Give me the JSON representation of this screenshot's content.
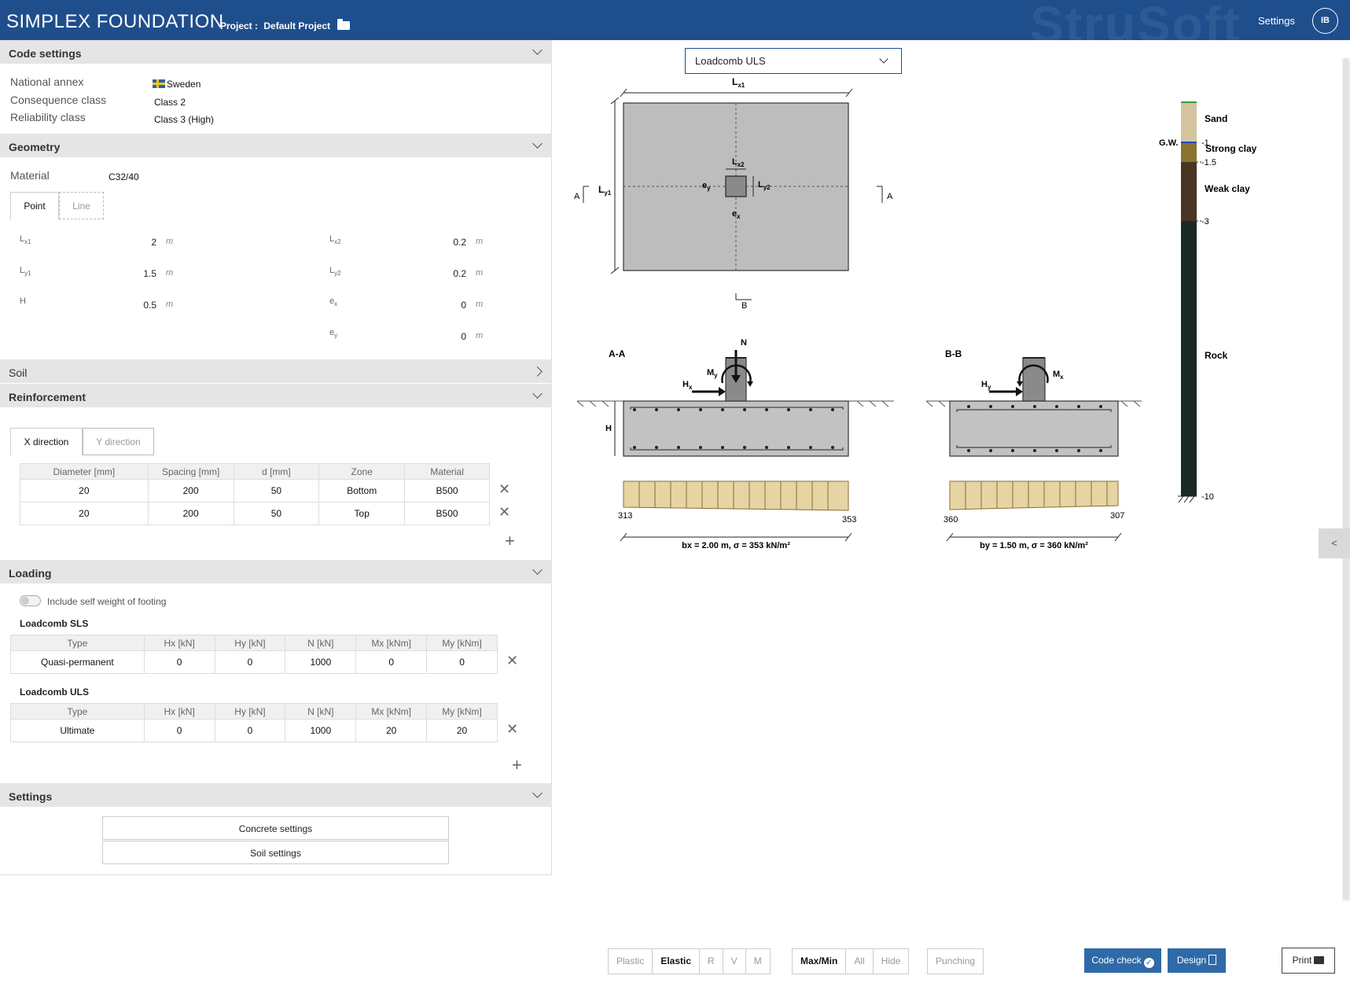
{
  "header": {
    "brand": "SIMPLEX FOUNDATION",
    "project_label": "Project :",
    "project_name": "Default Project",
    "watermark": "StruSoft",
    "settings": "Settings",
    "user_initials": "IB"
  },
  "code_settings": {
    "title": "Code settings",
    "national_annex_label": "National annex",
    "national_annex_value": "Sweden",
    "consequence_class_label": "Consequence class",
    "consequence_class_value": "Class 2",
    "reliability_class_label": "Reliability class",
    "reliability_class_value": "Class 3 (High)"
  },
  "geometry": {
    "title": "Geometry",
    "material_label": "Material",
    "material_value": "C32/40",
    "tabs": [
      "Point",
      "Line"
    ],
    "fields": [
      {
        "sym": "L",
        "sub": "x1",
        "value": "2",
        "unit": "m"
      },
      {
        "sym": "L",
        "sub": "y1",
        "value": "1.5",
        "unit": "m"
      },
      {
        "sym": "H",
        "sub": "",
        "value": "0.5",
        "unit": "m"
      },
      {
        "sym": "L",
        "sub": "x2",
        "value": "0.2",
        "unit": "m"
      },
      {
        "sym": "L",
        "sub": "y2",
        "value": "0.2",
        "unit": "m"
      },
      {
        "sym": "e",
        "sub": "x",
        "value": "0",
        "unit": "m"
      },
      {
        "sym": "e",
        "sub": "y",
        "value": "0",
        "unit": "m"
      }
    ]
  },
  "soil": {
    "title": "Soil"
  },
  "reinforcement": {
    "title": "Reinforcement",
    "tabs": [
      "X direction",
      "Y direction"
    ],
    "columns": [
      "Diameter [mm]",
      "Spacing [mm]",
      "d [mm]",
      "Zone",
      "Material"
    ],
    "rows": [
      [
        "20",
        "200",
        "50",
        "Bottom",
        "B500"
      ],
      [
        "20",
        "200",
        "50",
        "Top",
        "B500"
      ]
    ]
  },
  "loading": {
    "title": "Loading",
    "self_weight_label": "Include self weight of footing",
    "sls_title": "Loadcomb SLS",
    "uls_title": "Loadcomb ULS",
    "columns": [
      "Type",
      "Hx [kN]",
      "Hy [kN]",
      "N [kN]",
      "Mx [kNm]",
      "My [kNm]"
    ],
    "sls_rows": [
      [
        "Quasi-permanent",
        "0",
        "0",
        "1000",
        "0",
        "0"
      ]
    ],
    "uls_rows": [
      [
        "Ultimate",
        "0",
        "0",
        "1000",
        "20",
        "20"
      ]
    ]
  },
  "settings": {
    "title": "Settings",
    "concrete_button": "Concrete settings",
    "soil_button": "Soil settings"
  },
  "drawing": {
    "combo_value": "Loadcomb ULS",
    "plan_labels": {
      "lx1": "L",
      "lx1_sub": "x1",
      "ly1": "L",
      "ly1_sub": "y1",
      "lx2": "L",
      "lx2_sub": "x2",
      "ly2": "L",
      "ly2_sub": "y2",
      "ex": "e",
      "ex_sub": "x",
      "ey": "e",
      "ey_sub": "y",
      "sec_a": "A",
      "sec_b": "B"
    },
    "section_aa": {
      "title": "A-A",
      "n": "N",
      "m": "M",
      "m_sub": "y",
      "h": "H",
      "h_sub": "x",
      "H": "H",
      "left_value": "313",
      "right_value": "353",
      "dimension": "bx = 2.00 m, σ = 353 kN/m²"
    },
    "section_bb": {
      "title": "B-B",
      "m": "M",
      "m_sub": "x",
      "h": "H",
      "h_sub": "y",
      "left_value": "360",
      "right_value": "307",
      "dimension": "by = 1.50 m, σ = 360 kN/m²"
    },
    "soil_profile": {
      "gw_label": "G.W.",
      "layers": [
        {
          "name": "Sand",
          "color": "#d4c4a0"
        },
        {
          "name": "Strong clay",
          "color": "#8a7530"
        },
        {
          "name": "Weak clay",
          "color": "#4a3424"
        },
        {
          "name": "Rock",
          "color": "#1c2a26"
        }
      ],
      "levels": [
        "-1",
        "-1.5",
        "-3",
        "-10"
      ]
    }
  },
  "bottom_bar": {
    "group1": [
      "Plastic",
      "Elastic",
      "R",
      "V",
      "M"
    ],
    "group2": [
      "Max/Min",
      "All",
      "Hide"
    ],
    "group3": [
      "Punching"
    ],
    "code_check": "Code check",
    "design": "Design",
    "print": "Print",
    "side_tab": "<"
  }
}
